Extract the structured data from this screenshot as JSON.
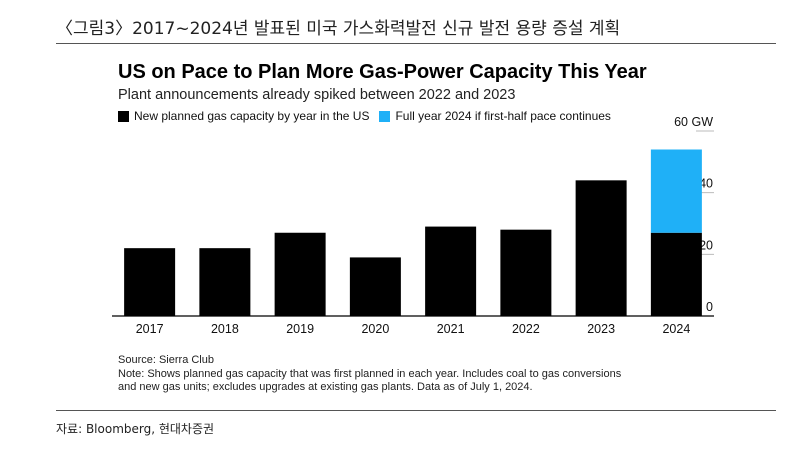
{
  "report_heading": "〈그림3〉2017~2024년 발표된 미국 가스화력발전 신규 발전 용량 증설 계획",
  "footer_source": "자료: Bloomberg, 현대차증권",
  "colors": {
    "base": "#000000",
    "projection": "#1fb0f7",
    "grid": "#bbbbbb",
    "axis": "#000000"
  },
  "chart_data": {
    "type": "bar",
    "stacked": true,
    "title": "US on Pace to Plan More Gas-Power Capacity This Year",
    "subtitle": "Plant announcements already spiked between 2022 and 2023",
    "categories": [
      "2017",
      "2018",
      "2019",
      "2020",
      "2021",
      "2022",
      "2023",
      "2024"
    ],
    "series": [
      {
        "name": "New planned gas capacity by year in the US",
        "values": [
          22,
          22,
          27,
          19,
          29,
          28,
          44,
          27
        ]
      },
      {
        "name": "Full year 2024 if first-half pace continues",
        "values": [
          0,
          0,
          0,
          0,
          0,
          0,
          0,
          27
        ]
      }
    ],
    "unit": "GW",
    "yticks": [
      "0",
      "20",
      "40",
      "60 GW"
    ],
    "ytick_values": [
      0,
      20,
      40,
      60
    ],
    "ylim": [
      0,
      60
    ],
    "xlabel": "",
    "ylabel": "",
    "legend_position": "top-left",
    "source": "Source: Sierra Club",
    "note_lines": [
      "Note: Shows planned gas capacity that was first planned in each year. Includes coal to gas conversions",
      "and new gas units; excludes upgrades at existing gas plants. Data as of July 1, 2024."
    ]
  }
}
